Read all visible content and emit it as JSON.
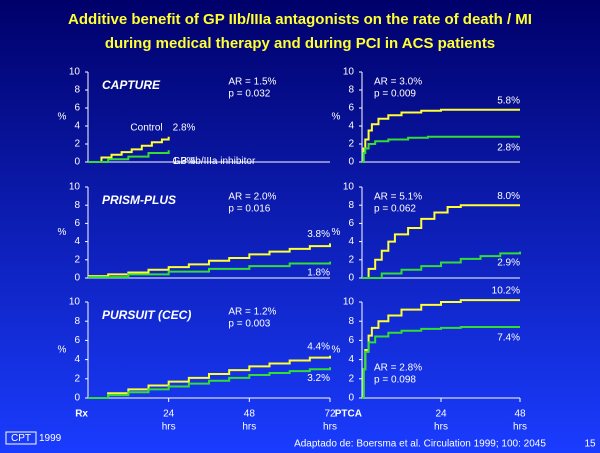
{
  "slide": {
    "title": [
      "Additive benefit of GP IIb/IIIa antagonists on the rate of death / MI",
      "during medical therapy and during PCI in ACS patients"
    ],
    "logo": "CPT",
    "year": "1999",
    "source": "Adaptado de: Boersma et al. Circulation 1999; 100: 2045",
    "page": "15"
  },
  "chart_data": [
    {
      "type": "line",
      "step": true,
      "title": "CAPTURE",
      "ylabel": "%",
      "annotations": [
        "AR = 1.5%",
        "p = 0.032"
      ],
      "annotation_corner": "top",
      "xlim": [
        0,
        72
      ],
      "ylim": [
        0,
        10
      ],
      "yticks": [
        0,
        2,
        4,
        6,
        8,
        10
      ],
      "series": [
        {
          "name": "Control",
          "color": "#ffff33",
          "x": [
            0,
            4,
            7,
            10,
            13,
            16,
            19,
            22,
            24
          ],
          "values": [
            0,
            0.5,
            0.8,
            1.1,
            1.4,
            1.8,
            2.2,
            2.5,
            2.8
          ],
          "end_label": "2.8%"
        },
        {
          "name": "GP IIb/IIIa inhibitor",
          "color": "#33dd33",
          "x": [
            0,
            6,
            12,
            18,
            24
          ],
          "values": [
            0,
            0.3,
            0.6,
            1.0,
            1.3
          ],
          "end_label": "1.3%"
        }
      ]
    },
    {
      "type": "line",
      "step": true,
      "ylabel": "%",
      "annotations": [
        "AR = 3.0%",
        "p = 0.009"
      ],
      "annotation_corner": "top",
      "xlim": [
        0,
        48
      ],
      "ylim": [
        0,
        10
      ],
      "yticks": [
        0,
        2,
        4,
        6,
        8,
        10
      ],
      "series": [
        {
          "color": "#ffff33",
          "x": [
            0,
            0.5,
            1,
            2,
            3,
            5,
            8,
            12,
            18,
            24,
            48
          ],
          "values": [
            0,
            1.5,
            2.5,
            3.5,
            4.2,
            4.8,
            5.2,
            5.5,
            5.7,
            5.8,
            5.8
          ],
          "end_label": "5.8%"
        },
        {
          "color": "#33dd33",
          "x": [
            0,
            0.5,
            1,
            2,
            4,
            8,
            14,
            20,
            48
          ],
          "values": [
            0,
            1,
            1.5,
            2.0,
            2.3,
            2.5,
            2.7,
            2.8,
            2.8
          ],
          "end_label": "2.8%"
        }
      ]
    },
    {
      "type": "line",
      "step": true,
      "title": "PRISM-PLUS",
      "ylabel": "%",
      "annotations": [
        "AR = 2.0%",
        "p = 0.016"
      ],
      "annotation_corner": "top",
      "xlim": [
        0,
        72
      ],
      "ylim": [
        0,
        10
      ],
      "yticks": [
        0,
        2,
        4,
        6,
        8,
        10
      ],
      "series": [
        {
          "color": "#ffff33",
          "x": [
            0,
            6,
            12,
            18,
            24,
            30,
            36,
            42,
            48,
            54,
            60,
            66,
            72
          ],
          "values": [
            0.2,
            0.4,
            0.6,
            0.9,
            1.2,
            1.5,
            1.9,
            2.2,
            2.6,
            2.9,
            3.2,
            3.5,
            3.8
          ],
          "end_label": "3.8%"
        },
        {
          "color": "#33dd33",
          "x": [
            0,
            12,
            24,
            36,
            48,
            60,
            72
          ],
          "values": [
            0.1,
            0.4,
            0.7,
            1.0,
            1.3,
            1.6,
            1.8
          ],
          "end_label": "1.8%"
        }
      ]
    },
    {
      "type": "line",
      "step": true,
      "ylabel": "%",
      "annotations": [
        "AR = 5.1%",
        "p = 0.062"
      ],
      "annotation_corner": "top",
      "xlim": [
        0,
        48
      ],
      "ylim": [
        0,
        10
      ],
      "yticks": [
        0,
        2,
        4,
        6,
        8,
        10
      ],
      "series": [
        {
          "color": "#ffff33",
          "x": [
            0,
            2,
            4,
            6,
            8,
            10,
            14,
            18,
            22,
            26,
            30,
            48
          ],
          "values": [
            0,
            1,
            2,
            3,
            4,
            4.8,
            5.5,
            6.5,
            7.2,
            7.8,
            8.0,
            8.0
          ],
          "end_label": "8.0%"
        },
        {
          "color": "#33dd33",
          "x": [
            0,
            6,
            12,
            18,
            24,
            30,
            36,
            42,
            48
          ],
          "values": [
            0,
            0.5,
            0.9,
            1.3,
            1.7,
            2.1,
            2.4,
            2.7,
            2.9
          ],
          "end_label": "2.9%"
        }
      ]
    },
    {
      "type": "line",
      "step": true,
      "title": "PURSUIT (CEC)",
      "ylabel": "%",
      "annotations": [
        "AR = 1.2%",
        "p = 0.003"
      ],
      "annotation_corner": "top",
      "xlim": [
        0,
        72
      ],
      "ylim": [
        0,
        10
      ],
      "yticks": [
        0,
        2,
        4,
        6,
        8,
        10
      ],
      "xticks": [
        24,
        48,
        72
      ],
      "x_unit": "hrs",
      "x_origin_label": "Rx",
      "series": [
        {
          "color": "#ffff33",
          "x": [
            0,
            6,
            12,
            18,
            24,
            30,
            36,
            42,
            48,
            54,
            60,
            66,
            72
          ],
          "values": [
            0,
            0.5,
            0.9,
            1.3,
            1.7,
            2.1,
            2.5,
            2.9,
            3.3,
            3.6,
            3.9,
            4.2,
            4.4
          ],
          "end_label": "4.4%"
        },
        {
          "color": "#33dd33",
          "x": [
            0,
            6,
            12,
            18,
            24,
            30,
            36,
            42,
            48,
            54,
            60,
            66,
            72
          ],
          "values": [
            0,
            0.3,
            0.6,
            0.9,
            1.2,
            1.5,
            1.8,
            2.1,
            2.4,
            2.6,
            2.8,
            3.0,
            3.2
          ],
          "end_label": "3.2%"
        }
      ]
    },
    {
      "type": "line",
      "step": true,
      "ylabel": "%",
      "annotations": [
        "AR = 2.8%",
        "p = 0.098"
      ],
      "annotation_corner": "bottom",
      "xlim": [
        0,
        48
      ],
      "ylim": [
        0,
        10
      ],
      "yticks": [
        0,
        2,
        4,
        6,
        8,
        10
      ],
      "xticks": [
        24,
        48
      ],
      "x_unit": "hrs",
      "x_origin_label": "PTCA",
      "series": [
        {
          "color": "#ffff33",
          "x": [
            0,
            0.5,
            1,
            2,
            3,
            5,
            8,
            12,
            18,
            24,
            30,
            48
          ],
          "values": [
            0,
            3,
            5,
            6.5,
            7.3,
            8,
            8.6,
            9.2,
            9.7,
            10,
            10.2,
            10.2
          ],
          "end_label": "10.2%"
        },
        {
          "color": "#33dd33",
          "x": [
            0,
            0.5,
            1,
            2,
            4,
            8,
            12,
            18,
            24,
            30,
            48
          ],
          "values": [
            0,
            3,
            4.8,
            5.8,
            6.4,
            6.8,
            7.0,
            7.2,
            7.3,
            7.4,
            7.4
          ],
          "end_label": "7.4%"
        }
      ]
    }
  ]
}
